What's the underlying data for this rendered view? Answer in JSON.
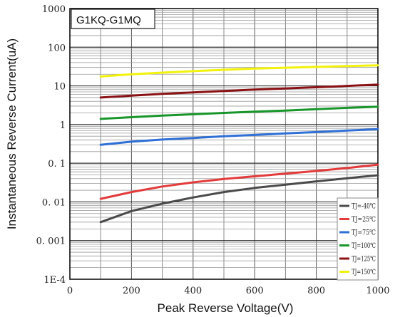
{
  "chart_data": {
    "type": "line",
    "title": "G1KQ-G1MQ",
    "xlabel": "Peak Reverse Voltage(V)",
    "ylabel": "Instantaneous Reverse Current(uA)",
    "xlim": [
      0,
      1000
    ],
    "ylim": [
      0.0001,
      1000
    ],
    "yscale": "log",
    "grid": true,
    "legend_position": "bottom-right",
    "x_ticks": [
      "0",
      "200",
      "400",
      "600",
      "800",
      "1000"
    ],
    "y_ticks": [
      "1E-4",
      "0. 001",
      "0. 01",
      "0. 1",
      "1",
      "10",
      "100",
      "1000"
    ],
    "x": [
      100,
      200,
      300,
      400,
      500,
      600,
      700,
      800,
      900,
      1000
    ],
    "series": [
      {
        "name": "TJ=-40℃",
        "color": "#4a4a4a",
        "values": [
          0.003,
          0.0058,
          0.009,
          0.013,
          0.018,
          0.023,
          0.028,
          0.034,
          0.041,
          0.049
        ]
      },
      {
        "name": "TJ=25℃",
        "color": "#e33b3b",
        "values": [
          0.012,
          0.018,
          0.025,
          0.032,
          0.039,
          0.046,
          0.054,
          0.063,
          0.075,
          0.092
        ]
      },
      {
        "name": "TJ=75℃",
        "color": "#2f6fd6",
        "values": [
          0.3,
          0.36,
          0.41,
          0.45,
          0.5,
          0.54,
          0.59,
          0.64,
          0.7,
          0.76
        ]
      },
      {
        "name": "TJ=100℃",
        "color": "#18962a",
        "values": [
          1.4,
          1.55,
          1.7,
          1.85,
          2.0,
          2.15,
          2.3,
          2.5,
          2.7,
          2.9
        ]
      },
      {
        "name": "TJ=125℃",
        "color": "#8b1214",
        "values": [
          5.0,
          5.6,
          6.2,
          6.8,
          7.4,
          8.0,
          8.6,
          9.2,
          10.0,
          10.8
        ]
      },
      {
        "name": "TJ=150℃",
        "color": "#f2f20c",
        "values": [
          17.5,
          20.0,
          22.0,
          24.0,
          26.0,
          28.0,
          29.5,
          31.0,
          32.5,
          34.0
        ]
      }
    ]
  }
}
